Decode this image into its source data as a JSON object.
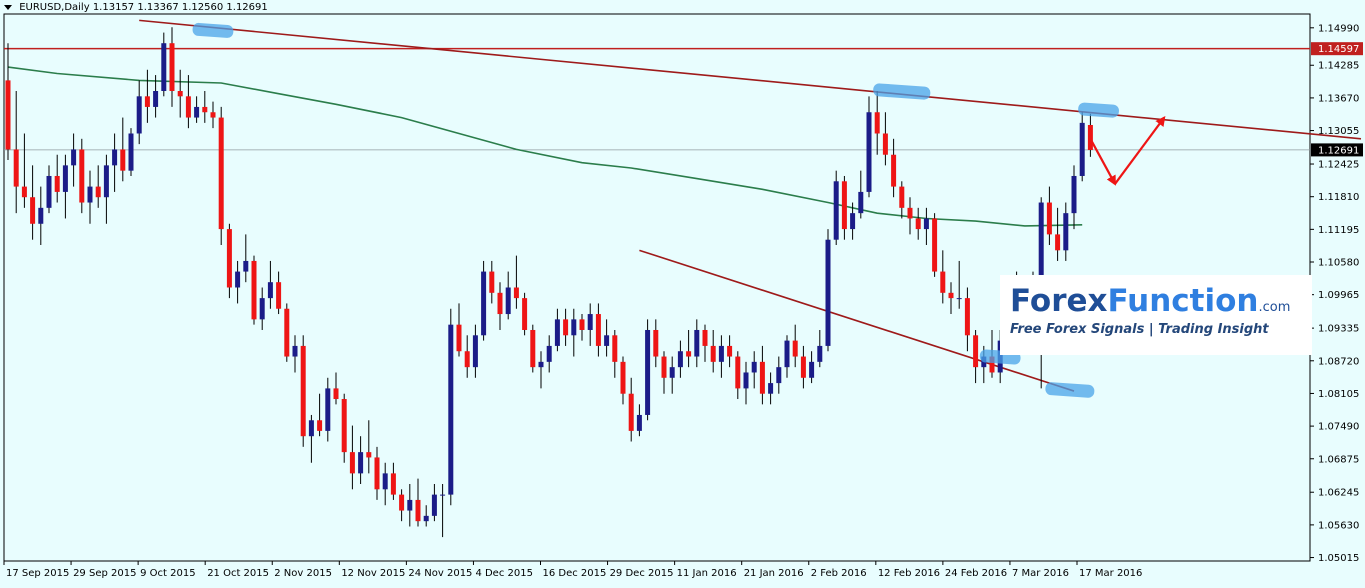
{
  "header": {
    "symbol": "EURUSD,Daily",
    "ohlc": "1.13157 1.13367 1.12560 1.12691"
  },
  "logo": {
    "brand_a": "Forex",
    "brand_b": "Function",
    "brand_tld": ".com",
    "tagline": "Free Forex Signals | Trading Insight"
  },
  "colors": {
    "background": "#e8fdfe",
    "bull_candle": "#1b1c88",
    "bear_candle": "#ee1515",
    "moving_average": "#2b7d4b",
    "trendline": "#9e1a1a",
    "resistance_line": "#c0201f",
    "highlight": "#4aa3e8",
    "price_tag_resistance": "#c0201f",
    "price_tag_current": "#000000"
  },
  "chart_data": {
    "type": "candlestick",
    "symbol": "EURUSD",
    "timeframe": "Daily",
    "ylim": [
      1.0495,
      1.1525
    ],
    "y_ticks": [
      "1.14990",
      "1.14285",
      "1.13670",
      "1.13055",
      "1.12425",
      "1.11810",
      "1.11195",
      "1.10580",
      "1.09965",
      "1.09335",
      "1.08720",
      "1.08105",
      "1.07490",
      "1.06875",
      "1.06245",
      "1.05630",
      "1.05015"
    ],
    "x_ticks": [
      "17 Sep 2015",
      "29 Sep 2015",
      "9 Oct 2015",
      "21 Oct 2015",
      "2 Nov 2015",
      "12 Nov 2015",
      "24 Nov 2015",
      "4 Dec 2015",
      "16 Dec 2015",
      "29 Dec 2015",
      "11 Jan 2016",
      "21 Jan 2016",
      "2 Feb 2016",
      "12 Feb 2016",
      "24 Feb 2016",
      "7 Mar 2016",
      "17 Mar 2016"
    ],
    "price_tags": [
      {
        "label": "1.14597",
        "value": 1.14597,
        "kind": "resistance"
      },
      {
        "label": "1.12691",
        "value": 1.12691,
        "kind": "current"
      }
    ],
    "horizontal_lines": [
      {
        "value": 1.14597,
        "kind": "resistance"
      },
      {
        "value": 1.12691,
        "kind": "current-price"
      }
    ],
    "candles": [
      [
        1.14,
        1.147,
        1.125,
        1.127
      ],
      [
        1.127,
        1.138,
        1.115,
        1.12
      ],
      [
        1.12,
        1.13,
        1.116,
        1.118
      ],
      [
        1.118,
        1.124,
        1.11,
        1.113
      ],
      [
        1.113,
        1.12,
        1.109,
        1.116
      ],
      [
        1.116,
        1.124,
        1.115,
        1.122
      ],
      [
        1.122,
        1.126,
        1.117,
        1.119
      ],
      [
        1.119,
        1.126,
        1.114,
        1.124
      ],
      [
        1.124,
        1.13,
        1.12,
        1.127
      ],
      [
        1.127,
        1.129,
        1.115,
        1.117
      ],
      [
        1.117,
        1.123,
        1.113,
        1.12
      ],
      [
        1.12,
        1.124,
        1.116,
        1.118
      ],
      [
        1.118,
        1.126,
        1.113,
        1.124
      ],
      [
        1.124,
        1.13,
        1.119,
        1.127
      ],
      [
        1.127,
        1.133,
        1.121,
        1.123
      ],
      [
        1.123,
        1.131,
        1.122,
        1.13
      ],
      [
        1.13,
        1.14,
        1.128,
        1.137
      ],
      [
        1.137,
        1.142,
        1.132,
        1.135
      ],
      [
        1.135,
        1.141,
        1.133,
        1.138
      ],
      [
        1.138,
        1.149,
        1.137,
        1.147
      ],
      [
        1.147,
        1.15,
        1.135,
        1.138
      ],
      [
        1.138,
        1.142,
        1.133,
        1.137
      ],
      [
        1.137,
        1.141,
        1.131,
        1.133
      ],
      [
        1.133,
        1.137,
        1.132,
        1.135
      ],
      [
        1.135,
        1.138,
        1.132,
        1.134
      ],
      [
        1.134,
        1.136,
        1.131,
        1.133
      ],
      [
        1.133,
        1.135,
        1.109,
        1.112
      ],
      [
        1.112,
        1.113,
        1.099,
        1.101
      ],
      [
        1.101,
        1.106,
        1.098,
        1.104
      ],
      [
        1.104,
        1.111,
        1.102,
        1.106
      ],
      [
        1.106,
        1.107,
        1.094,
        1.095
      ],
      [
        1.095,
        1.101,
        1.093,
        1.099
      ],
      [
        1.099,
        1.106,
        1.097,
        1.102
      ],
      [
        1.102,
        1.104,
        1.096,
        1.097
      ],
      [
        1.097,
        1.098,
        1.087,
        1.088
      ],
      [
        1.088,
        1.092,
        1.085,
        1.09
      ],
      [
        1.09,
        1.092,
        1.071,
        1.073
      ],
      [
        1.073,
        1.077,
        1.068,
        1.076
      ],
      [
        1.076,
        1.081,
        1.073,
        1.074
      ],
      [
        1.074,
        1.084,
        1.072,
        1.082
      ],
      [
        1.082,
        1.085,
        1.079,
        1.08
      ],
      [
        1.08,
        1.081,
        1.068,
        1.07
      ],
      [
        1.07,
        1.075,
        1.063,
        1.066
      ],
      [
        1.066,
        1.073,
        1.064,
        1.07
      ],
      [
        1.07,
        1.076,
        1.066,
        1.069
      ],
      [
        1.069,
        1.071,
        1.061,
        1.063
      ],
      [
        1.063,
        1.068,
        1.06,
        1.066
      ],
      [
        1.066,
        1.068,
        1.061,
        1.062
      ],
      [
        1.062,
        1.063,
        1.057,
        1.059
      ],
      [
        1.059,
        1.064,
        1.056,
        1.061
      ],
      [
        1.061,
        1.065,
        1.056,
        1.057
      ],
      [
        1.057,
        1.06,
        1.056,
        1.058
      ],
      [
        1.058,
        1.064,
        1.057,
        1.062
      ],
      [
        1.062,
        1.064,
        1.054,
        1.062
      ],
      [
        1.062,
        1.097,
        1.06,
        1.094
      ],
      [
        1.094,
        1.098,
        1.088,
        1.089
      ],
      [
        1.089,
        1.092,
        1.084,
        1.086
      ],
      [
        1.086,
        1.094,
        1.084,
        1.092
      ],
      [
        1.092,
        1.106,
        1.091,
        1.104
      ],
      [
        1.104,
        1.106,
        1.098,
        1.1
      ],
      [
        1.1,
        1.102,
        1.093,
        1.096
      ],
      [
        1.096,
        1.104,
        1.095,
        1.101
      ],
      [
        1.101,
        1.107,
        1.097,
        1.099
      ],
      [
        1.099,
        1.1,
        1.092,
        1.093
      ],
      [
        1.093,
        1.094,
        1.085,
        1.086
      ],
      [
        1.086,
        1.089,
        1.082,
        1.087
      ],
      [
        1.087,
        1.092,
        1.085,
        1.09
      ],
      [
        1.09,
        1.097,
        1.089,
        1.095
      ],
      [
        1.095,
        1.097,
        1.09,
        1.092
      ],
      [
        1.092,
        1.097,
        1.088,
        1.095
      ],
      [
        1.095,
        1.096,
        1.091,
        1.093
      ],
      [
        1.093,
        1.098,
        1.09,
        1.096
      ],
      [
        1.096,
        1.098,
        1.088,
        1.09
      ],
      [
        1.09,
        1.095,
        1.088,
        1.092
      ],
      [
        1.092,
        1.093,
        1.084,
        1.087
      ],
      [
        1.087,
        1.088,
        1.079,
        1.081
      ],
      [
        1.081,
        1.084,
        1.072,
        1.074
      ],
      [
        1.074,
        1.079,
        1.073,
        1.077
      ],
      [
        1.077,
        1.095,
        1.076,
        1.093
      ],
      [
        1.093,
        1.095,
        1.086,
        1.088
      ],
      [
        1.088,
        1.089,
        1.081,
        1.084
      ],
      [
        1.084,
        1.088,
        1.081,
        1.086
      ],
      [
        1.086,
        1.091,
        1.084,
        1.089
      ],
      [
        1.089,
        1.093,
        1.086,
        1.088
      ],
      [
        1.088,
        1.095,
        1.086,
        1.093
      ],
      [
        1.093,
        1.094,
        1.087,
        1.09
      ],
      [
        1.09,
        1.093,
        1.085,
        1.087
      ],
      [
        1.087,
        1.092,
        1.084,
        1.09
      ],
      [
        1.09,
        1.092,
        1.086,
        1.088
      ],
      [
        1.088,
        1.089,
        1.08,
        1.082
      ],
      [
        1.082,
        1.087,
        1.079,
        1.085
      ],
      [
        1.085,
        1.089,
        1.082,
        1.087
      ],
      [
        1.087,
        1.09,
        1.079,
        1.081
      ],
      [
        1.081,
        1.085,
        1.079,
        1.083
      ],
      [
        1.083,
        1.088,
        1.081,
        1.086
      ],
      [
        1.086,
        1.092,
        1.084,
        1.091
      ],
      [
        1.091,
        1.094,
        1.086,
        1.088
      ],
      [
        1.088,
        1.09,
        1.082,
        1.084
      ],
      [
        1.084,
        1.089,
        1.083,
        1.087
      ],
      [
        1.087,
        1.093,
        1.086,
        1.09
      ],
      [
        1.09,
        1.112,
        1.089,
        1.11
      ],
      [
        1.11,
        1.123,
        1.109,
        1.121
      ],
      [
        1.121,
        1.122,
        1.11,
        1.112
      ],
      [
        1.112,
        1.117,
        1.11,
        1.115
      ],
      [
        1.115,
        1.123,
        1.114,
        1.119
      ],
      [
        1.119,
        1.137,
        1.118,
        1.134
      ],
      [
        1.134,
        1.138,
        1.126,
        1.13
      ],
      [
        1.13,
        1.134,
        1.124,
        1.126
      ],
      [
        1.126,
        1.129,
        1.118,
        1.12
      ],
      [
        1.12,
        1.121,
        1.114,
        1.116
      ],
      [
        1.116,
        1.118,
        1.111,
        1.114
      ],
      [
        1.114,
        1.116,
        1.11,
        1.112
      ],
      [
        1.112,
        1.116,
        1.109,
        1.114
      ],
      [
        1.114,
        1.115,
        1.103,
        1.104
      ],
      [
        1.104,
        1.108,
        1.098,
        1.1
      ],
      [
        1.1,
        1.102,
        1.096,
        1.099
      ],
      [
        1.099,
        1.106,
        1.097,
        1.099
      ],
      [
        1.099,
        1.101,
        1.089,
        1.092
      ],
      [
        1.092,
        1.093,
        1.083,
        1.086
      ],
      [
        1.086,
        1.09,
        1.083,
        1.088
      ],
      [
        1.088,
        1.093,
        1.084,
        1.085
      ],
      [
        1.085,
        1.093,
        1.083,
        1.091
      ],
      [
        1.091,
        1.1,
        1.09,
        1.098
      ],
      [
        1.098,
        1.104,
        1.094,
        1.101
      ],
      [
        1.101,
        1.103,
        1.099,
        1.1
      ],
      [
        1.1,
        1.104,
        1.097,
        1.099
      ],
      [
        1.099,
        1.118,
        1.082,
        1.117
      ],
      [
        1.117,
        1.12,
        1.109,
        1.111
      ],
      [
        1.111,
        1.116,
        1.106,
        1.108
      ],
      [
        1.108,
        1.117,
        1.106,
        1.115
      ],
      [
        1.115,
        1.124,
        1.112,
        1.122
      ],
      [
        1.122,
        1.134,
        1.121,
        1.132
      ],
      [
        1.1316,
        1.1337,
        1.1256,
        1.1269
      ]
    ],
    "moving_average": [
      [
        0,
        1.1425
      ],
      [
        6,
        1.1413
      ],
      [
        16,
        1.14
      ],
      [
        26,
        1.1395
      ],
      [
        33,
        1.1375
      ],
      [
        40,
        1.1355
      ],
      [
        48,
        1.133
      ],
      [
        55,
        1.13
      ],
      [
        62,
        1.127
      ],
      [
        70,
        1.1245
      ],
      [
        76,
        1.1235
      ],
      [
        84,
        1.1215
      ],
      [
        92,
        1.1195
      ],
      [
        100,
        1.117
      ],
      [
        106,
        1.115
      ],
      [
        112,
        1.114
      ],
      [
        118,
        1.1135
      ],
      [
        124,
        1.1126
      ],
      [
        131,
        1.1128
      ]
    ],
    "trendlines": [
      {
        "kind": "resistance",
        "from": [
          16,
          1.1513
        ],
        "to": [
          165,
          1.129
        ]
      },
      {
        "kind": "support",
        "from": [
          77,
          1.108
        ],
        "to": [
          130,
          1.0815
        ]
      }
    ],
    "arrows": [
      {
        "kind": "projection-down",
        "from": [
          132,
          1.129
        ],
        "to": [
          135,
          1.1205
        ]
      },
      {
        "kind": "projection-up",
        "from": [
          135,
          1.1205
        ],
        "to": [
          141,
          1.133
        ]
      }
    ],
    "highlights": [
      {
        "x": [
          23,
          27
        ],
        "y": 1.1495
      },
      {
        "x": [
          106,
          112
        ],
        "y": 1.138
      },
      {
        "x": [
          131,
          135
        ],
        "y": 1.1345
      },
      {
        "x": [
          119,
          123
        ],
        "y": 1.088
      },
      {
        "x": [
          127,
          132
        ],
        "y": 1.0818
      }
    ]
  }
}
